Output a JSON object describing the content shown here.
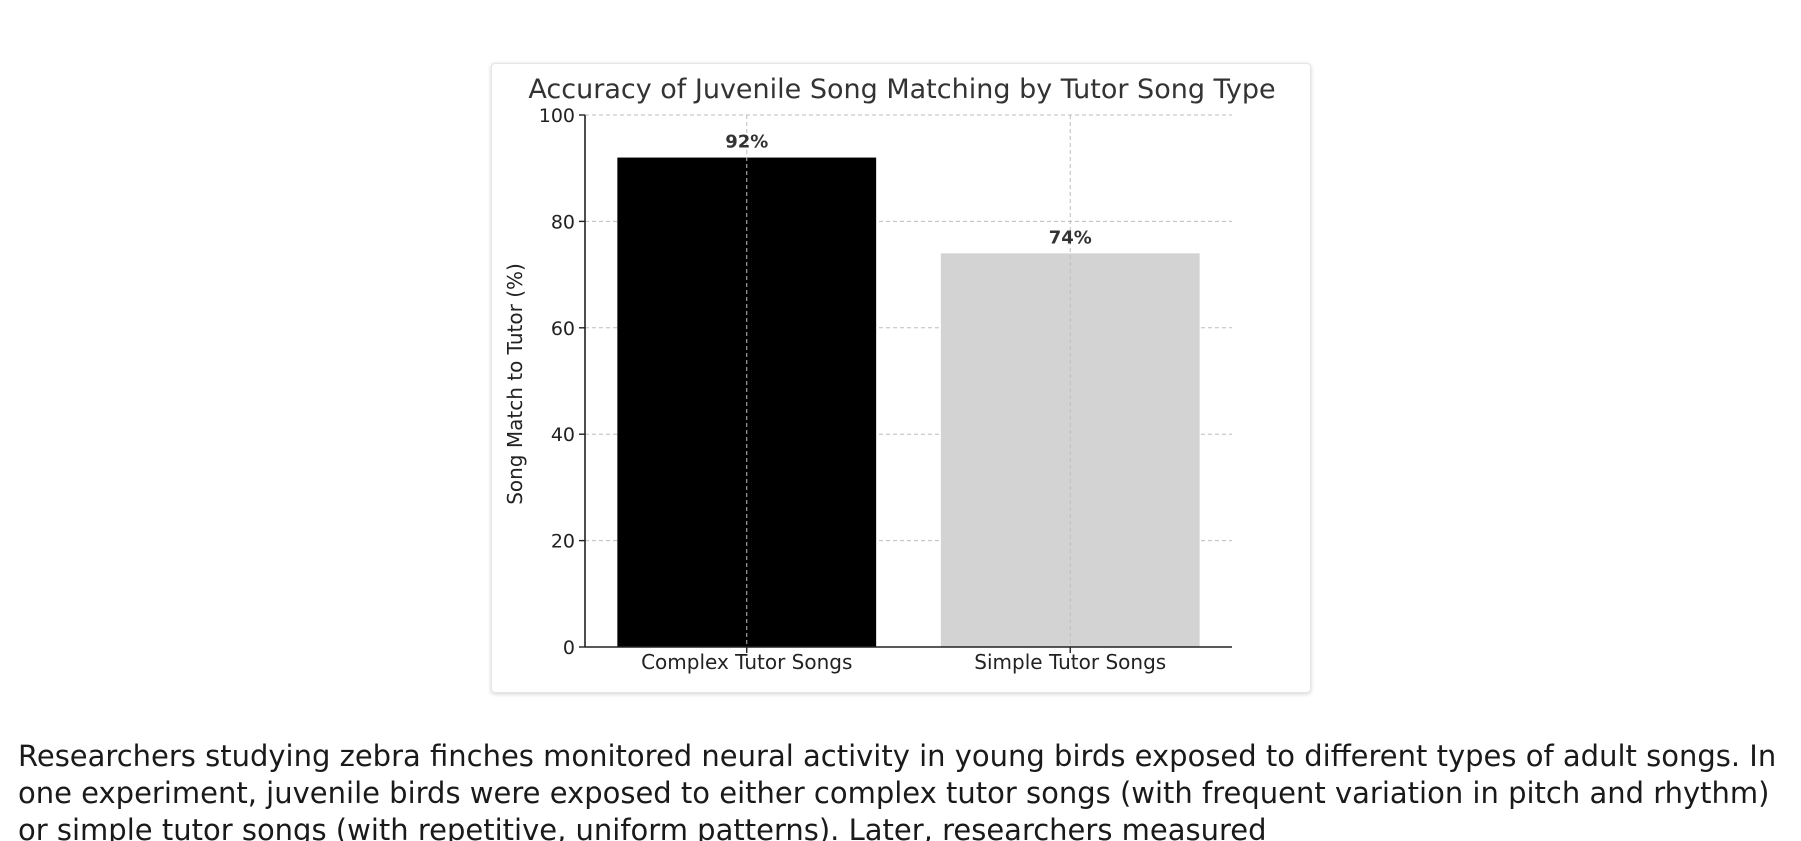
{
  "chart_data": {
    "type": "bar",
    "title": "Accuracy of Juvenile Song Matching by Tutor Song Type",
    "xlabel": "",
    "ylabel": "Song Match to Tutor (%)",
    "categories": [
      "Complex Tutor Songs",
      "Simple Tutor Songs"
    ],
    "values": [
      92,
      74
    ],
    "value_labels": [
      "92%",
      "74%"
    ],
    "bar_colors": [
      "#000000",
      "#d3d3d3"
    ],
    "ylim": [
      0,
      100
    ],
    "yticks": [
      "0",
      "20",
      "40",
      "60",
      "80",
      "100"
    ],
    "grid": true,
    "legend": "none"
  },
  "passage": {
    "text": "Researchers studying zebra finches monitored neural activity in young birds exposed to different types of adult songs. In one experiment, juvenile birds were exposed to either complex tutor songs (with frequent variation in pitch and rhythm) or simple tutor songs (with repetitive, uniform patterns). Later, researchers measured"
  }
}
